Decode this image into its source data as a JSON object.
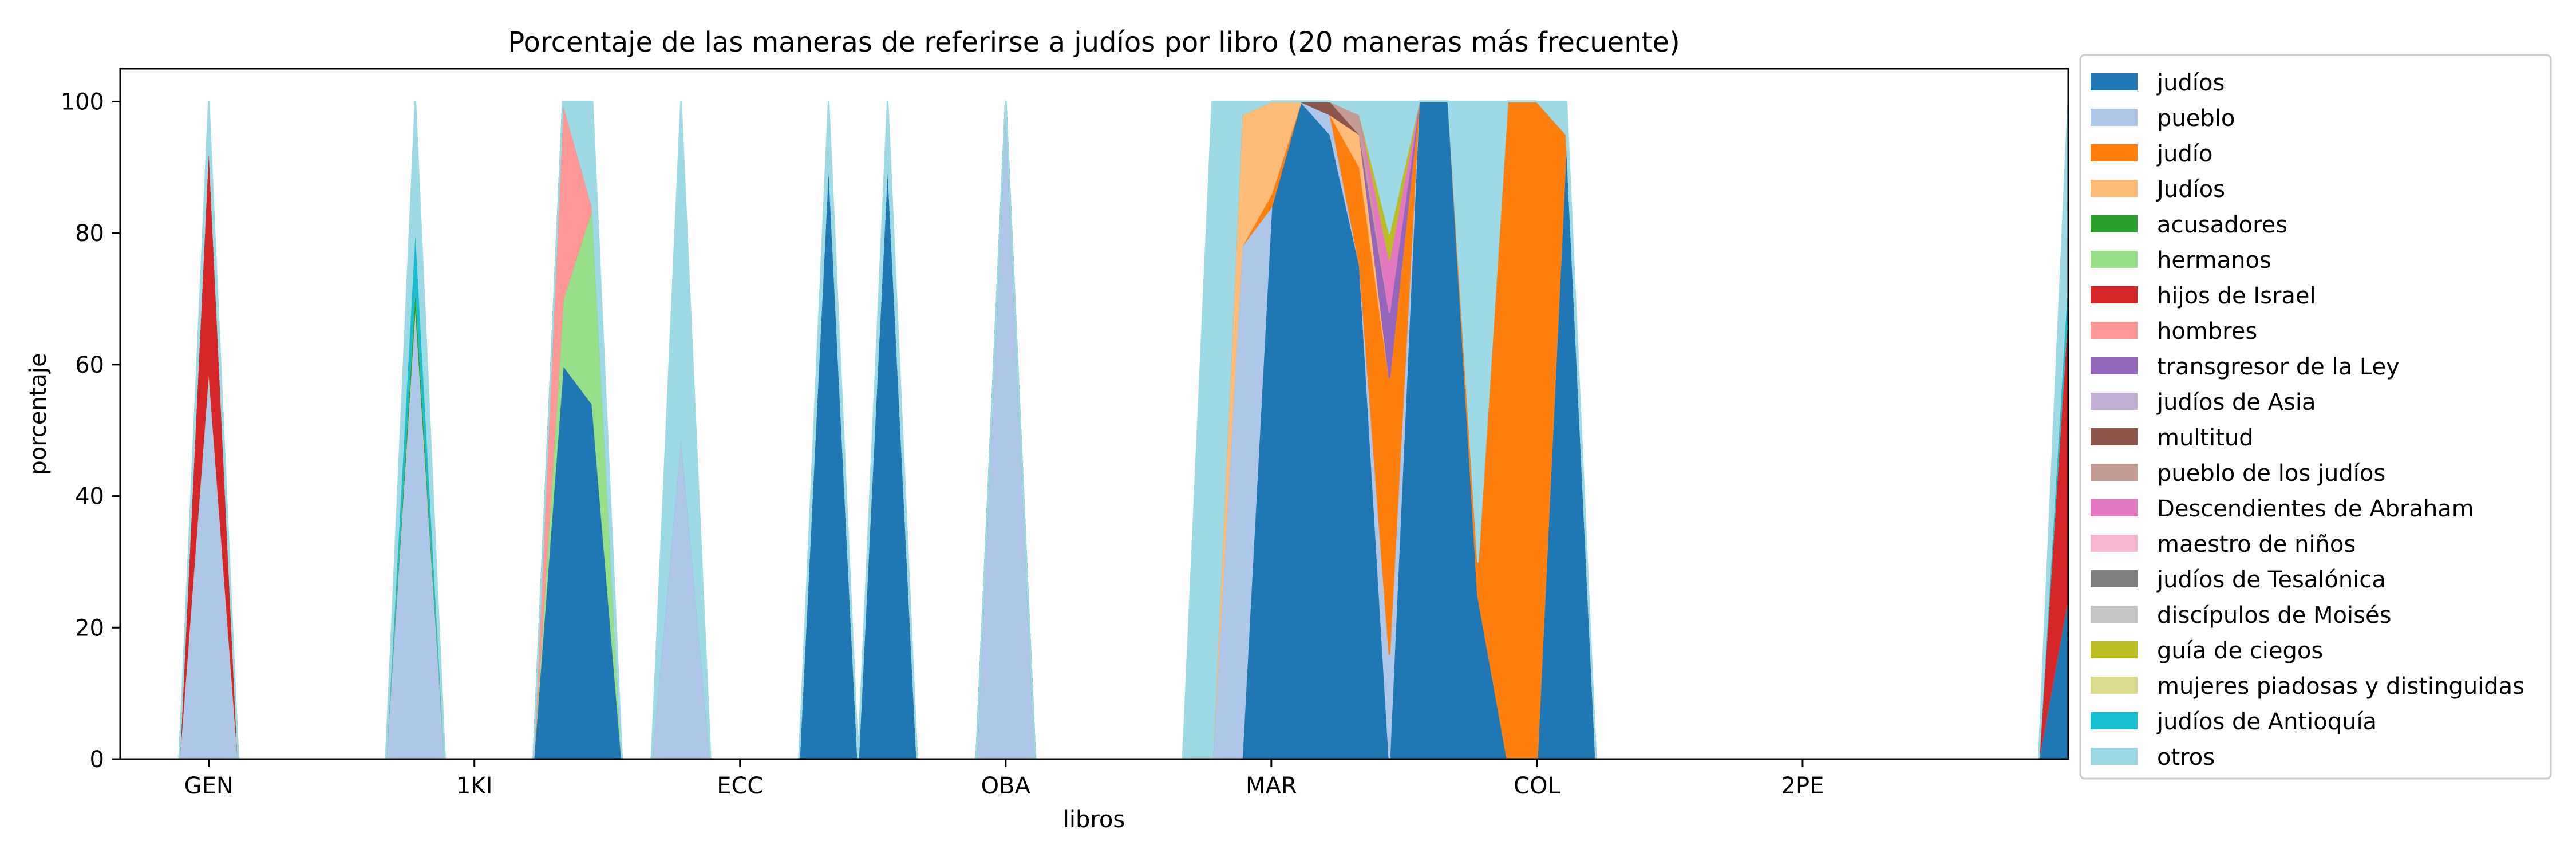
{
  "chart_data": {
    "type": "area",
    "stacked": true,
    "percent": true,
    "title": "Porcentaje de las maneras de referirse a judíos por libro  (20 maneras más frecuente)",
    "xlabel": "libros",
    "ylabel": "porcentaje",
    "xlim": [
      0,
      66
    ],
    "ylim": [
      0,
      105
    ],
    "xticks": [
      {
        "x": 3,
        "label": "GEN"
      },
      {
        "x": 12,
        "label": "1KI"
      },
      {
        "x": 21,
        "label": "ECC"
      },
      {
        "x": 30,
        "label": "OBA"
      },
      {
        "x": 39,
        "label": "MAR"
      },
      {
        "x": 48,
        "label": "COL"
      },
      {
        "x": 57,
        "label": "2PE"
      }
    ],
    "yticks": [
      0,
      20,
      40,
      60,
      80,
      100
    ],
    "legend_position": "outside-right",
    "series": [
      {
        "name": "judíos",
        "color": "#1f77b4"
      },
      {
        "name": "pueblo",
        "color": "#aec7e8"
      },
      {
        "name": "judío",
        "color": "#ff7f0e"
      },
      {
        "name": "Judíos",
        "color": "#ffbb78"
      },
      {
        "name": "acusadores",
        "color": "#2ca02c"
      },
      {
        "name": "hermanos",
        "color": "#98df8a"
      },
      {
        "name": "hijos de Israel",
        "color": "#d62728"
      },
      {
        "name": "hombres",
        "color": "#ff9896"
      },
      {
        "name": "transgresor de la Ley",
        "color": "#9467bd"
      },
      {
        "name": "judíos de Asia",
        "color": "#c5b0d5"
      },
      {
        "name": "multitud",
        "color": "#8c564b"
      },
      {
        "name": "pueblo de los judíos",
        "color": "#c49c94"
      },
      {
        "name": "Descendientes de Abraham",
        "color": "#e377c2"
      },
      {
        "name": "maestro de niños",
        "color": "#f7b6d2"
      },
      {
        "name": "judíos de Tesalónica",
        "color": "#7f7f7f"
      },
      {
        "name": "discípulos de Moisés",
        "color": "#c7c7c7"
      },
      {
        "name": "guía de ciegos",
        "color": "#bcbd22"
      },
      {
        "name": "mujeres piadosas y distinguidas",
        "color": "#dbdb8d"
      },
      {
        "name": "judíos de Antioquía",
        "color": "#17becf"
      },
      {
        "name": "otros",
        "color": "#9edae5"
      }
    ],
    "points": [
      {
        "x": 3,
        "values": {
          "pueblo": 60,
          "hijos de Israel": 35,
          "otros": 5
        }
      },
      {
        "x": 10,
        "values": {
          "pueblo": 70,
          "acusadores": 3,
          "judíos de Antioquía": 9,
          "otros": 18
        }
      },
      {
        "x": 15,
        "values": {
          "judíos": 60,
          "hermanos": 10,
          "hombres": 30
        }
      },
      {
        "x": 16,
        "values": {
          "judíos": 54,
          "hermanos": 30,
          "otros": 16
        }
      },
      {
        "x": 19,
        "values": {
          "pueblo": 50,
          "otros": 50
        }
      },
      {
        "x": 24,
        "values": {
          "judíos": 92,
          "otros": 8
        }
      },
      {
        "x": 26,
        "values": {
          "judíos": 92,
          "otros": 8
        }
      },
      {
        "x": 30,
        "values": {
          "pueblo": 100
        }
      },
      {
        "x": 37,
        "values": {
          "otros": 100
        }
      },
      {
        "x": 38,
        "values": {
          "pueblo": 78,
          "Judíos": 20,
          "otros": 2
        }
      },
      {
        "x": 39,
        "values": {
          "judíos": 84,
          "judío": 2,
          "Judíos": 14
        }
      },
      {
        "x": 40,
        "values": {
          "judíos": 100
        }
      },
      {
        "x": 41,
        "values": {
          "judíos": 95,
          "pueblo": 3,
          "multitud": 2
        }
      },
      {
        "x": 42,
        "values": {
          "judíos": 75,
          "judío": 15,
          "Judíos": 5,
          "pueblo de los judíos": 3,
          "otros": 2
        }
      },
      {
        "x": 43,
        "values": {
          "pueblo": 16,
          "judío": 42,
          "transgresor de la Ley": 10,
          "Descendientes de Abraham": 8,
          "guía de ciegos": 4,
          "otros": 20
        }
      },
      {
        "x": 44,
        "values": {
          "judíos": 100
        }
      },
      {
        "x": 45,
        "values": {
          "judíos": 100
        }
      },
      {
        "x": 46,
        "values": {
          "judíos": 25,
          "judío": 5,
          "otros": 70
        }
      },
      {
        "x": 47,
        "values": {
          "judío": 100
        }
      },
      {
        "x": 48,
        "values": {
          "judío": 100
        }
      },
      {
        "x": 49,
        "values": {
          "judíos": 95,
          "otros": 5
        }
      },
      {
        "x": 66,
        "values": {
          "judíos": 25,
          "hijos de Israel": 45,
          "judíos de Antioquía": 5,
          "otros": 25
        }
      }
    ]
  }
}
